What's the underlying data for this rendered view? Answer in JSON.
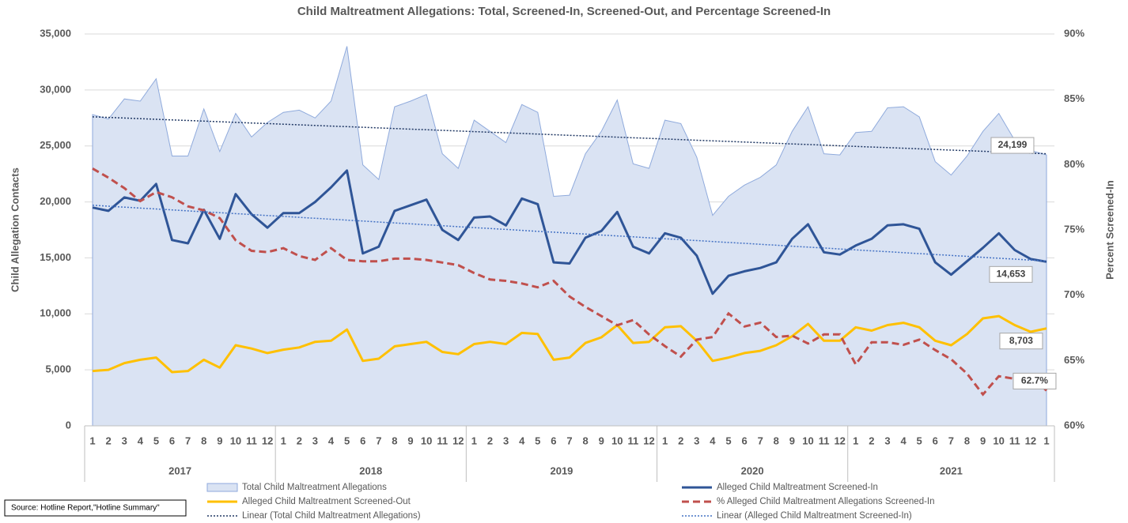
{
  "chart_data": {
    "type": "line",
    "title": "Child Maltreatment Allegations: Total, Screened-In, Screened-Out, and Percentage Screened-In",
    "y_label": "Child Allegation Contacts",
    "y2_label": "Percent Screened-In",
    "source": "Source: Hotline Report,\"Hotline Summary\"",
    "categories": [
      "1",
      "2",
      "3",
      "4",
      "5",
      "6",
      "7",
      "8",
      "9",
      "10",
      "11",
      "12",
      "1",
      "2",
      "3",
      "4",
      "5",
      "6",
      "7",
      "8",
      "9",
      "10",
      "11",
      "12",
      "1",
      "2",
      "3",
      "4",
      "5",
      "6",
      "7",
      "8",
      "9",
      "10",
      "11",
      "12",
      "1",
      "2",
      "3",
      "4",
      "5",
      "6",
      "7",
      "8",
      "9",
      "10",
      "11",
      "12",
      "1",
      "2",
      "3",
      "4",
      "5",
      "6",
      "7",
      "8",
      "9",
      "10",
      "11",
      "12",
      "1"
    ],
    "years": [
      "2017",
      "2018",
      "2019",
      "2020",
      "2021"
    ],
    "ylim": [
      0,
      35000
    ],
    "yticks": [
      0,
      {
        "value": 5000,
        "label": "5,000"
      },
      {
        "value": 10000,
        "label": "10,000"
      },
      {
        "value": 15000,
        "label": "15,000"
      },
      {
        "value": 20000,
        "label": "20,000"
      },
      {
        "value": 25000,
        "label": "25,000"
      },
      {
        "value": 30000,
        "label": "30,000"
      },
      {
        "value": 35000,
        "label": "35,000"
      }
    ],
    "y2lim": [
      60,
      90
    ],
    "y2ticks": [
      {
        "value": 60,
        "label": "60%"
      },
      {
        "value": 65,
        "label": "65%"
      },
      {
        "value": 70,
        "label": "70%"
      },
      {
        "value": 75,
        "label": "75%"
      },
      {
        "value": 80,
        "label": "80%"
      },
      {
        "value": 85,
        "label": "85%"
      },
      {
        "value": 90,
        "label": "90%"
      }
    ],
    "grid": true,
    "legend": "bottom",
    "series": [
      {
        "name": "Total Child Maltreatment Allegations",
        "style": "area",
        "color": "#dae3f3",
        "stroke": "#8faadc",
        "values": [
          27800,
          27400,
          29200,
          29000,
          31000,
          24100,
          24100,
          28300,
          24500,
          27900,
          25800,
          27100,
          28000,
          28200,
          27500,
          29000,
          33900,
          23300,
          22000,
          28500,
          29000,
          29600,
          24300,
          23000,
          27300,
          26300,
          25300,
          28700,
          28000,
          20500,
          20600,
          24300,
          26300,
          29100,
          23400,
          23000,
          27300,
          27000,
          24000,
          18800,
          20500,
          21500,
          22200,
          23300,
          26300,
          28500,
          24300,
          24200,
          26200,
          26300,
          28400,
          28500,
          27600,
          23600,
          22400,
          24100,
          26300,
          27900,
          25500,
          24600,
          24199
        ],
        "value_labels": [
          null,
          null,
          null,
          null,
          null,
          null,
          null,
          null,
          null,
          null,
          null,
          null,
          null,
          null,
          null,
          null,
          null,
          null,
          null,
          null,
          null,
          null,
          null,
          null,
          null,
          null,
          null,
          null,
          null,
          null,
          null,
          null,
          null,
          null,
          null,
          null,
          null,
          null,
          null,
          null,
          null,
          null,
          null,
          null,
          null,
          null,
          null,
          null,
          null,
          null,
          null,
          null,
          null,
          null,
          null,
          null,
          null,
          null,
          null,
          null,
          "24,199"
        ]
      },
      {
        "name": "Alleged Child Maltreatment Screened-In",
        "style": "line",
        "color": "#2f5597",
        "values": [
          19500,
          19200,
          20400,
          20100,
          21600,
          16600,
          16300,
          19300,
          16700,
          20700,
          18900,
          17700,
          19000,
          19000,
          20000,
          21300,
          22800,
          15400,
          16000,
          19200,
          19700,
          20200,
          17500,
          16600,
          18600,
          18700,
          17900,
          20300,
          19800,
          14600,
          14500,
          16800,
          17400,
          19100,
          16000,
          15400,
          17200,
          16800,
          15200,
          11800,
          13400,
          13800,
          14100,
          14600,
          16700,
          18000,
          15500,
          15300,
          16100,
          16700,
          17900,
          18000,
          17600,
          14600,
          13500,
          14700,
          15900,
          17200,
          15700,
          14900,
          14653
        ],
        "value_labels": [
          null,
          null,
          null,
          null,
          null,
          null,
          null,
          null,
          null,
          null,
          null,
          null,
          null,
          null,
          null,
          null,
          null,
          null,
          null,
          null,
          null,
          null,
          null,
          null,
          null,
          null,
          null,
          null,
          null,
          null,
          null,
          null,
          null,
          null,
          null,
          null,
          null,
          null,
          null,
          null,
          null,
          null,
          null,
          null,
          null,
          null,
          null,
          null,
          null,
          null,
          null,
          null,
          null,
          null,
          null,
          null,
          null,
          null,
          null,
          null,
          "14,653"
        ]
      },
      {
        "name": "Alleged Child Maltreatment Screened-Out",
        "style": "line",
        "color": "#ffc000",
        "values": [
          4900,
          5000,
          5600,
          5900,
          6100,
          4800,
          4900,
          5900,
          5200,
          7200,
          6900,
          6500,
          6800,
          7000,
          7500,
          7600,
          8600,
          5800,
          6000,
          7100,
          7300,
          7500,
          6600,
          6400,
          7300,
          7500,
          7300,
          8300,
          8200,
          5900,
          6100,
          7400,
          7900,
          9000,
          7400,
          7500,
          8800,
          8900,
          7600,
          5800,
          6100,
          6500,
          6700,
          7200,
          8000,
          9100,
          7600,
          7600,
          8800,
          8500,
          9000,
          9200,
          8800,
          7600,
          7200,
          8200,
          9600,
          9800,
          9000,
          8400,
          8703
        ],
        "value_labels": [
          null,
          null,
          null,
          null,
          null,
          null,
          null,
          null,
          null,
          null,
          null,
          null,
          null,
          null,
          null,
          null,
          null,
          null,
          null,
          null,
          null,
          null,
          null,
          null,
          null,
          null,
          null,
          null,
          null,
          null,
          null,
          null,
          null,
          null,
          null,
          null,
          null,
          null,
          null,
          null,
          null,
          null,
          null,
          null,
          null,
          null,
          null,
          null,
          null,
          null,
          null,
          null,
          null,
          null,
          null,
          null,
          null,
          null,
          null,
          null,
          "8,703"
        ]
      },
      {
        "name": "% Alleged Child Maltreatment Allegations Screened-In",
        "style": "dashed",
        "color": "#c0504d",
        "axis": "y2",
        "values": [
          79.7,
          79.0,
          78.2,
          77.2,
          77.9,
          77.5,
          76.8,
          76.5,
          75.9,
          74.2,
          73.4,
          73.3,
          73.6,
          73.0,
          72.7,
          73.6,
          72.7,
          72.6,
          72.6,
          72.8,
          72.8,
          72.7,
          72.5,
          72.3,
          71.7,
          71.2,
          71.1,
          70.9,
          70.6,
          71.1,
          69.9,
          69.1,
          68.4,
          67.7,
          68.1,
          67.0,
          66.1,
          65.3,
          66.6,
          66.8,
          68.6,
          67.6,
          67.9,
          66.8,
          66.9,
          66.3,
          67.0,
          67.0,
          64.7,
          66.4,
          66.4,
          66.2,
          66.6,
          65.8,
          65.1,
          64.0,
          62.4,
          63.8,
          63.6,
          63.8,
          62.7
        ],
        "value_labels": [
          null,
          null,
          null,
          null,
          null,
          null,
          null,
          null,
          null,
          null,
          null,
          null,
          null,
          null,
          null,
          null,
          null,
          null,
          null,
          null,
          null,
          null,
          null,
          null,
          null,
          null,
          null,
          null,
          null,
          null,
          null,
          null,
          null,
          null,
          null,
          null,
          null,
          null,
          null,
          null,
          null,
          null,
          null,
          null,
          null,
          null,
          null,
          null,
          null,
          null,
          null,
          null,
          null,
          null,
          null,
          null,
          null,
          null,
          null,
          null,
          "62.7%"
        ]
      },
      {
        "name": "Linear (Total Child Maltreatment Allegations)",
        "style": "dotted",
        "color": "#203864",
        "values": [
          27600,
          27545,
          27490,
          27435,
          27380,
          27325,
          27270,
          27215,
          27160,
          27105,
          27050,
          26995,
          26940,
          26885,
          26830,
          26775,
          26720,
          26665,
          26610,
          26555,
          26500,
          26445,
          26390,
          26335,
          26280,
          26225,
          26170,
          26115,
          26060,
          26005,
          25950,
          25895,
          25840,
          25785,
          25730,
          25675,
          25620,
          25565,
          25510,
          25455,
          25400,
          25345,
          25290,
          25235,
          25180,
          25125,
          25070,
          25015,
          24960,
          24905,
          24850,
          24795,
          24740,
          24685,
          24630,
          24575,
          24520,
          24465,
          24410,
          24355,
          24300
        ]
      },
      {
        "name": "Linear (Alleged Child Maltreatment Screened-In)",
        "style": "dotted",
        "color": "#4472c4",
        "values": [
          19700,
          19617,
          19534,
          19451,
          19368,
          19285,
          19202,
          19119,
          19036,
          18953,
          18870,
          18787,
          18704,
          18621,
          18538,
          18455,
          18372,
          18289,
          18206,
          18123,
          18040,
          17957,
          17874,
          17791,
          17708,
          17625,
          17542,
          17459,
          17376,
          17293,
          17210,
          17127,
          17044,
          16961,
          16878,
          16795,
          16712,
          16629,
          16546,
          16463,
          16380,
          16297,
          16214,
          16131,
          16048,
          15965,
          15882,
          15799,
          15716,
          15633,
          15550,
          15467,
          15384,
          15301,
          15218,
          15135,
          15052,
          14969,
          14886,
          14803,
          14720
        ]
      }
    ]
  }
}
